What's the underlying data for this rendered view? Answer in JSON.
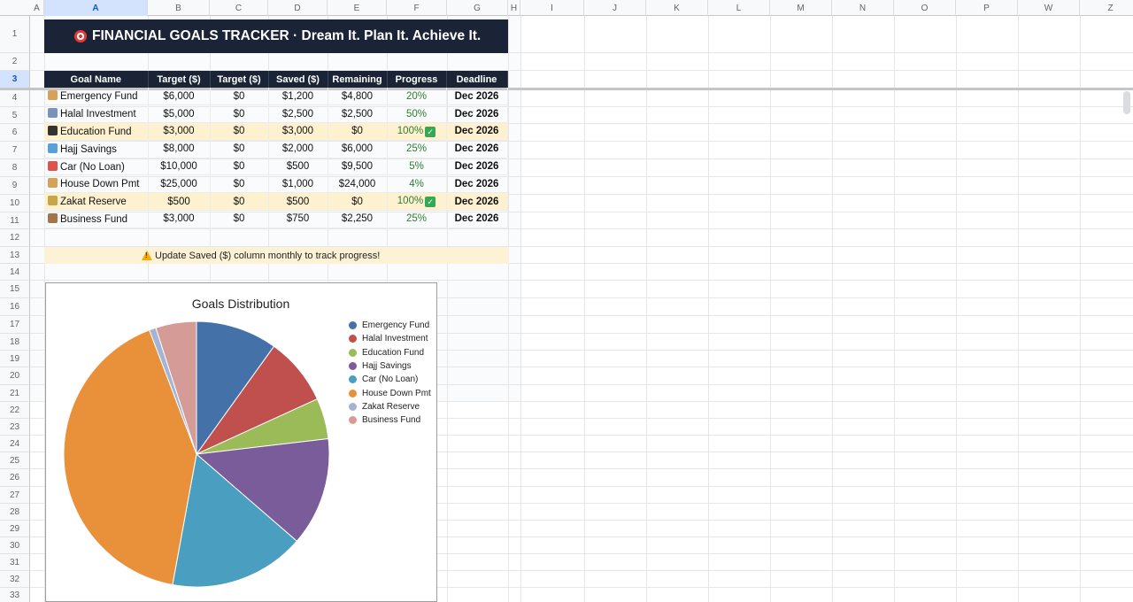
{
  "columns": [
    "A",
    "B",
    "C",
    "D",
    "E",
    "F",
    "G",
    "H",
    "I",
    "J",
    "K",
    "L",
    "M",
    "N",
    "O",
    "P",
    "W",
    "Z"
  ],
  "rows": [
    "1",
    "2",
    "3",
    "4",
    "5",
    "6",
    "7",
    "8",
    "9",
    "10",
    "11",
    "12",
    "13",
    "14",
    "15",
    "16",
    "17",
    "18",
    "19",
    "20",
    "21",
    "22",
    "23",
    "24",
    "25",
    "26",
    "27",
    "28",
    "29",
    "30",
    "31",
    "32",
    "33"
  ],
  "banner": {
    "title": "FINANCIAL GOALS TRACKER · Dream It. Plan It. Achieve It.",
    "icon": "target-icon"
  },
  "table": {
    "headers": [
      "Goal Name",
      "Target ($)",
      "Target ($)",
      "Saved ($)",
      "Remaining",
      "Progress",
      "Deadline"
    ],
    "rows": [
      {
        "icon": "house-icon",
        "name": "Emergency Fund",
        "target": "$6,000",
        "target2": "$0",
        "saved": "$1,200",
        "remaining": "$4,800",
        "progress": "20%",
        "deadline": "Dec 2026",
        "highlight": false,
        "check": false
      },
      {
        "icon": "chart-icon",
        "name": "Halal Investment",
        "target": "$5,000",
        "target2": "$0",
        "saved": "$2,500",
        "remaining": "$2,500",
        "progress": "50%",
        "deadline": "Dec 2026",
        "highlight": false,
        "check": false
      },
      {
        "icon": "graduation-cap-icon",
        "name": "Education Fund",
        "target": "$3,000",
        "target2": "$0",
        "saved": "$3,000",
        "remaining": "$0",
        "progress": "100%",
        "deadline": "Dec 2026",
        "highlight": true,
        "check": true
      },
      {
        "icon": "plane-icon",
        "name": "Hajj Savings",
        "target": "$8,000",
        "target2": "$0",
        "saved": "$2,000",
        "remaining": "$6,000",
        "progress": "25%",
        "deadline": "Dec 2026",
        "highlight": false,
        "check": false
      },
      {
        "icon": "car-icon",
        "name": "Car (No Loan)",
        "target": "$10,000",
        "target2": "$0",
        "saved": "$500",
        "remaining": "$9,500",
        "progress": "5%",
        "deadline": "Dec 2026",
        "highlight": false,
        "check": false
      },
      {
        "icon": "house-icon",
        "name": "House Down Pmt",
        "target": "$25,000",
        "target2": "$0",
        "saved": "$1,000",
        "remaining": "$24,000",
        "progress": "4%",
        "deadline": "Dec 2026",
        "highlight": false,
        "check": false
      },
      {
        "icon": "money-bag-icon",
        "name": "Zakat Reserve",
        "target": "$500",
        "target2": "$0",
        "saved": "$500",
        "remaining": "$0",
        "progress": "100%",
        "deadline": "Dec 2026",
        "highlight": true,
        "check": true
      },
      {
        "icon": "box-icon",
        "name": "Business Fund",
        "target": "$3,000",
        "target2": "$0",
        "saved": "$750",
        "remaining": "$2,250",
        "progress": "25%",
        "deadline": "Dec 2026",
        "highlight": false,
        "check": false
      }
    ]
  },
  "note": {
    "text": "Update Saved ($) column monthly to track progress!",
    "icon": "warning-icon"
  },
  "colors": {
    "header_bg": "#1b2437",
    "highlight": "#fdf1cf",
    "progress": "#2e7d32"
  },
  "chart_data": {
    "type": "pie",
    "title": "Goals Distribution",
    "legend_position": "right",
    "labels": [
      "Emergency Fund",
      "Halal Investment",
      "Education Fund",
      "Hajj Savings",
      "Car (No Loan)",
      "House Down Pmt",
      "Zakat Reserve",
      "Business Fund"
    ],
    "values": [
      6000,
      5000,
      3000,
      8000,
      10000,
      25000,
      500,
      3000
    ],
    "colors": [
      "#4472a8",
      "#c0504d",
      "#9bbb59",
      "#7a5c9a",
      "#4a9ec0",
      "#e8913a",
      "#a5b4d4",
      "#d59b96"
    ]
  }
}
